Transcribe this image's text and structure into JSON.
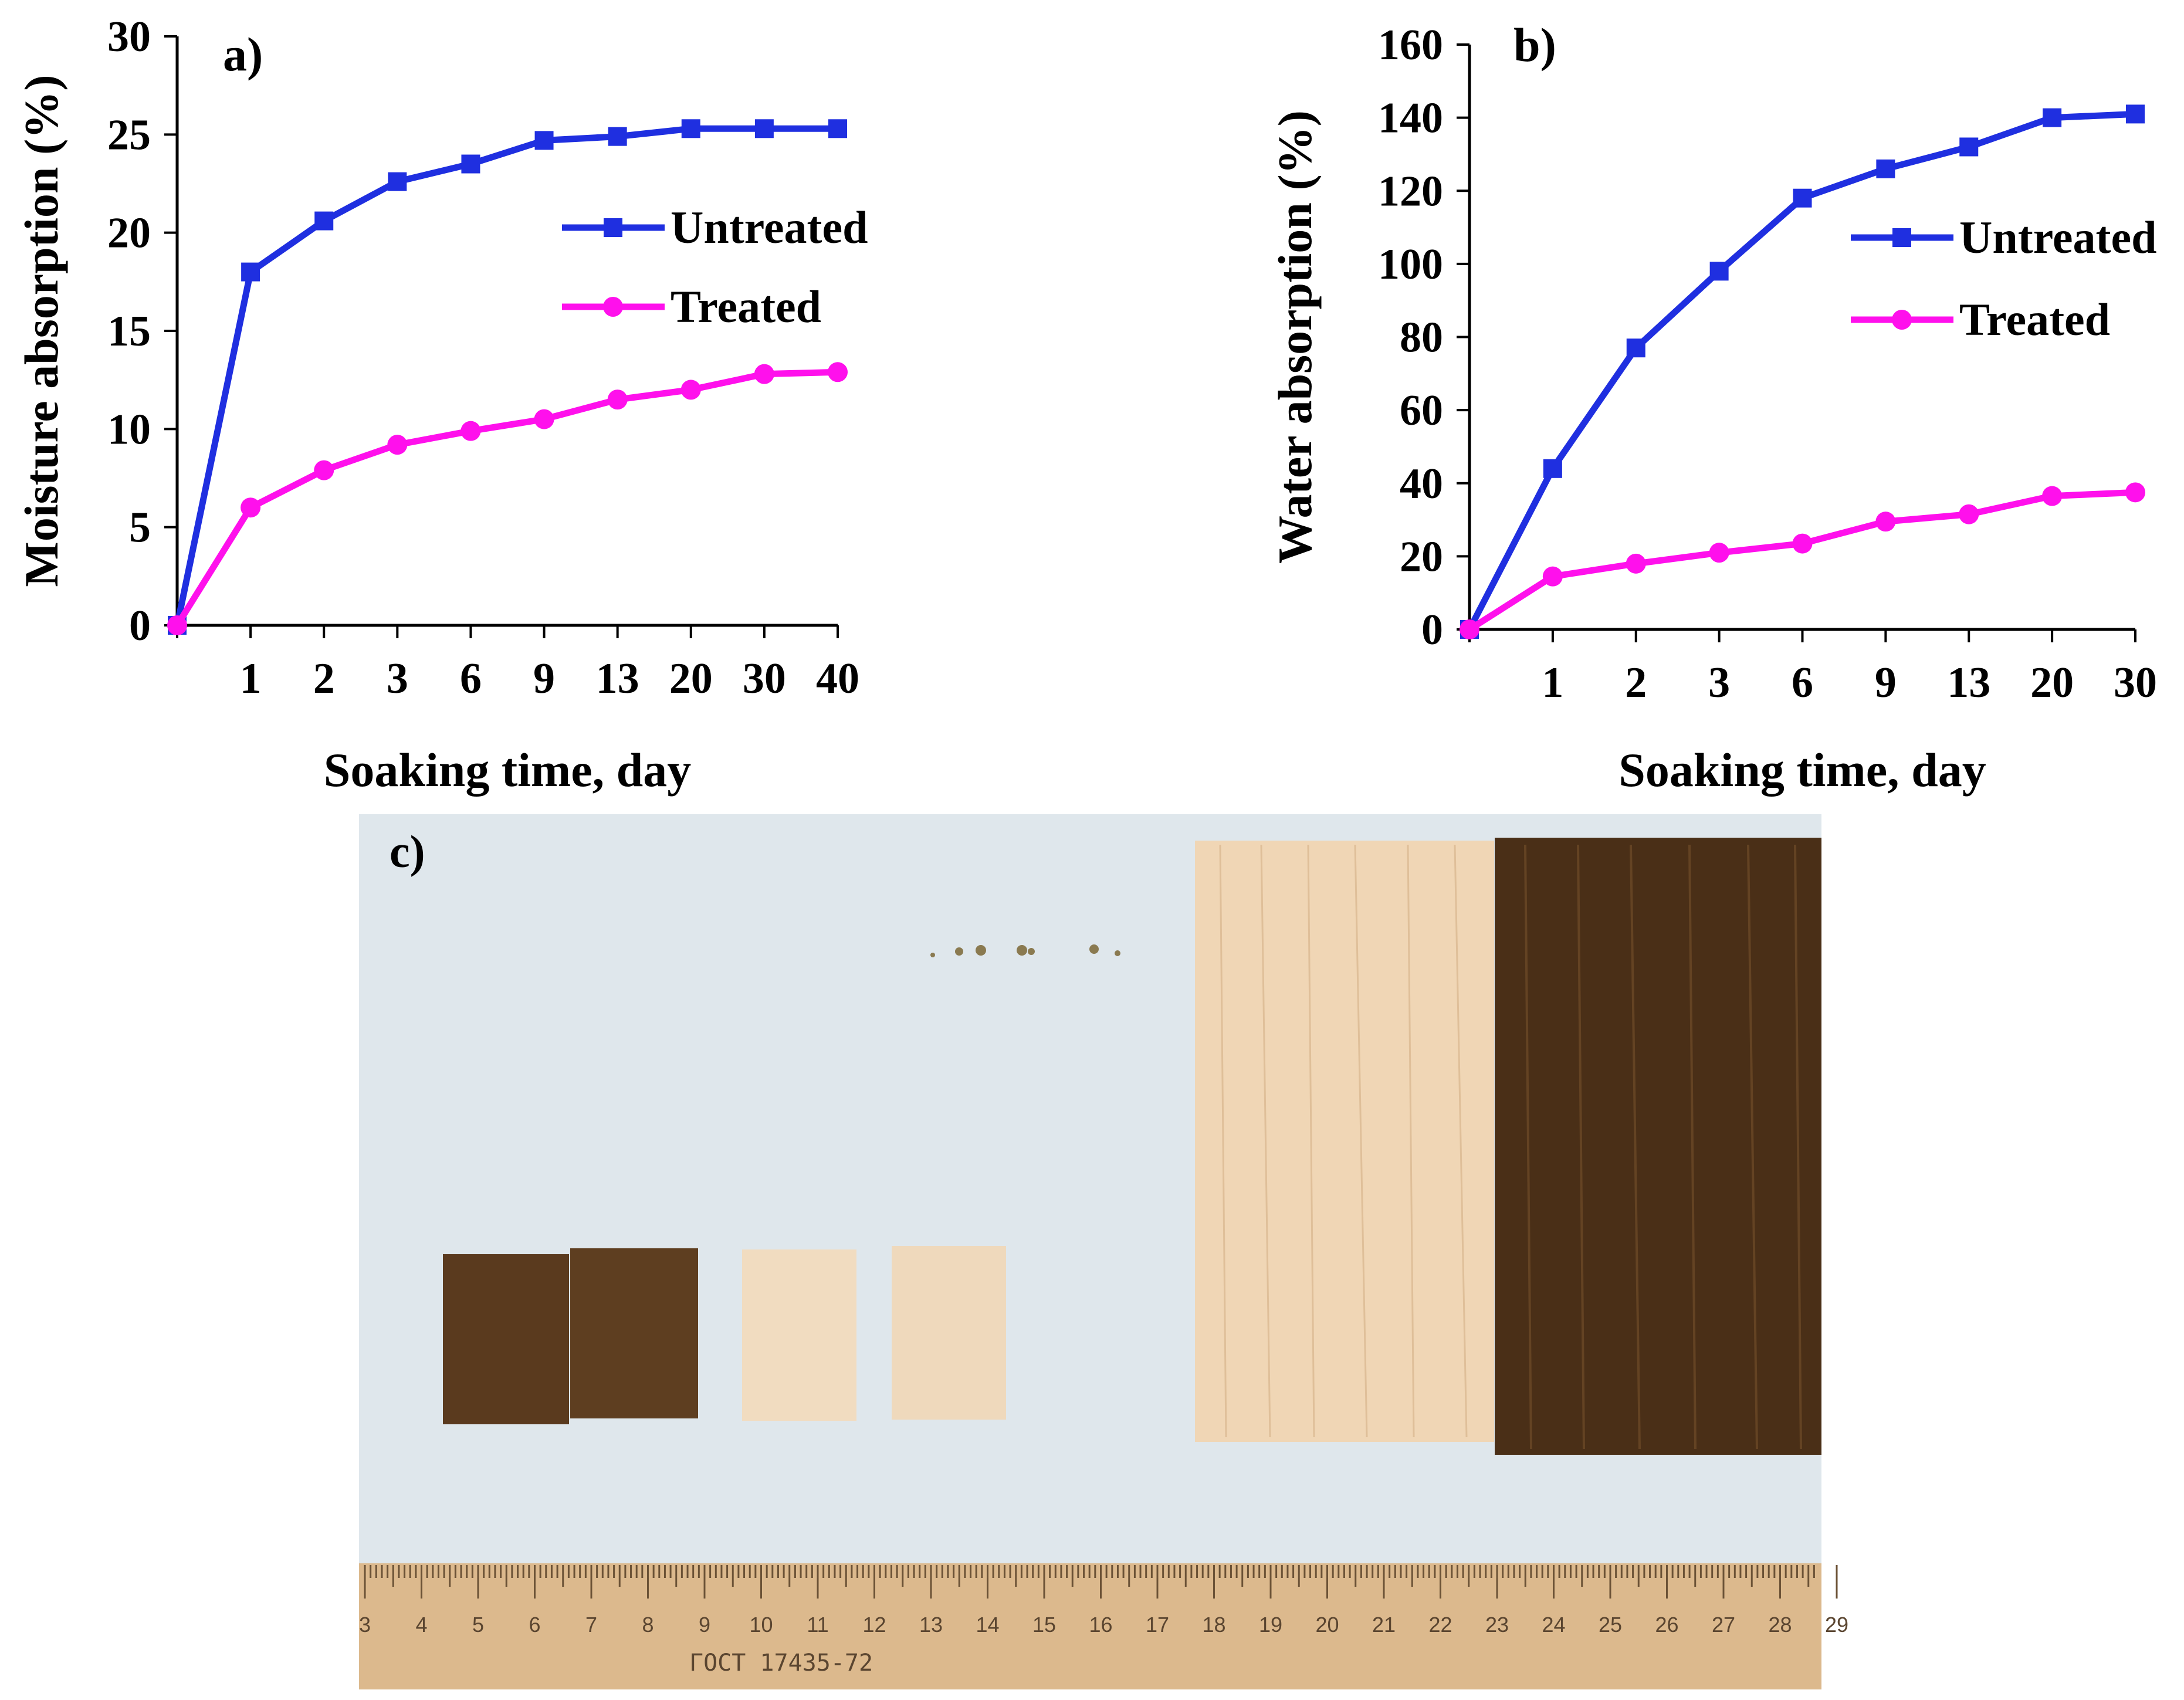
{
  "colors": {
    "untreated": "#1f2fe0",
    "treated": "#ff10ec",
    "axis": "#000000",
    "photo_background": "#dde6ec",
    "ruler": "#d8b489",
    "dark_wood": "#4a2f18",
    "light_wood": "#efd7b8"
  },
  "chart_data": [
    {
      "type": "line",
      "panel_label": "a)",
      "title": "",
      "xlabel": "Soaking time, day",
      "ylabel": "Moisture absorption (%)",
      "categories": [
        "0",
        "1",
        "2",
        "3",
        "6",
        "9",
        "13",
        "20",
        "30",
        "40"
      ],
      "x_tick_labels": [
        "1",
        "2",
        "3",
        "6",
        "9",
        "13",
        "20",
        "30",
        "40"
      ],
      "y_ticks": [
        0,
        5,
        10,
        15,
        20,
        25,
        30
      ],
      "ylim": [
        0,
        30
      ],
      "grid": false,
      "legend_position": "right-middle",
      "series": [
        {
          "name": "Untreated",
          "marker": "square",
          "color_key": "untreated",
          "values": [
            0,
            18.0,
            20.6,
            22.6,
            23.5,
            24.7,
            24.9,
            25.3,
            25.3,
            25.3
          ]
        },
        {
          "name": "Treated",
          "marker": "circle",
          "color_key": "treated",
          "values": [
            0,
            6.0,
            7.9,
            9.2,
            9.9,
            10.5,
            11.5,
            12.0,
            12.8,
            12.9
          ]
        }
      ]
    },
    {
      "type": "line",
      "panel_label": "b)",
      "title": "",
      "xlabel": "Soaking time, day",
      "ylabel": "Water absorption (%)",
      "categories": [
        "0",
        "1",
        "2",
        "3",
        "6",
        "9",
        "13",
        "20",
        "30"
      ],
      "x_tick_labels": [
        "1",
        "2",
        "3",
        "6",
        "9",
        "13",
        "20",
        "30"
      ],
      "y_ticks": [
        0,
        20,
        40,
        60,
        80,
        100,
        120,
        140,
        160
      ],
      "ylim": [
        0,
        160
      ],
      "grid": false,
      "legend_position": "right-middle",
      "series": [
        {
          "name": "Untreated",
          "marker": "square",
          "color_key": "untreated",
          "values": [
            0,
            44,
            77,
            98,
            118,
            126,
            132,
            140,
            141
          ]
        },
        {
          "name": "Treated",
          "marker": "circle",
          "color_key": "treated",
          "values": [
            0,
            14.5,
            18,
            21,
            23.5,
            29.5,
            31.5,
            36.5,
            37.5
          ]
        }
      ]
    }
  ],
  "photo": {
    "panel_label": "c)",
    "ruler_numbers": [
      "3",
      "4",
      "5",
      "6",
      "7",
      "8",
      "9",
      "10",
      "11",
      "12",
      "13",
      "14",
      "15",
      "16",
      "17",
      "18",
      "19",
      "20",
      "21",
      "22",
      "23",
      "24",
      "25",
      "26",
      "27",
      "28",
      "29"
    ],
    "ruler_text": "ГОСТ 17435-72"
  }
}
